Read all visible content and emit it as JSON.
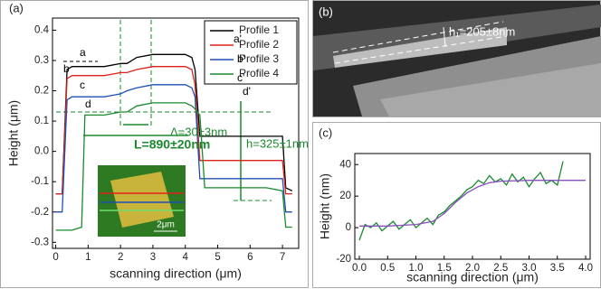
{
  "chart_data": [
    {
      "type": "line",
      "panel_label": "(a)",
      "xlabel": "scanning direction (μm)",
      "ylabel": "Height (μm)",
      "x": [
        0,
        0.2,
        0.35,
        0.5,
        0.8,
        0.9,
        1.0,
        1.5,
        2.0,
        2.2,
        2.5,
        3.0,
        3.5,
        4.0,
        4.2,
        4.3,
        4.45,
        4.6,
        5.0,
        5.5,
        6.0,
        6.5,
        7.0,
        7.1,
        7.3
      ],
      "series": [
        {
          "name": "Profile 1",
          "color": "#000000",
          "values": [
            -0.14,
            -0.14,
            0.27,
            0.28,
            0.28,
            0.28,
            0.28,
            0.28,
            0.29,
            0.29,
            0.31,
            0.32,
            0.32,
            0.32,
            0.31,
            0.27,
            0.05,
            0.05,
            0.05,
            0.05,
            0.05,
            0.05,
            0.05,
            -0.12,
            -0.13
          ]
        },
        {
          "name": "Profile 2",
          "color": "#e0201b",
          "values": [
            -0.14,
            -0.14,
            0.24,
            0.25,
            0.25,
            0.25,
            0.25,
            0.25,
            0.26,
            0.26,
            0.27,
            0.28,
            0.28,
            0.28,
            0.27,
            0.22,
            -0.03,
            -0.03,
            -0.03,
            -0.03,
            -0.03,
            -0.03,
            -0.03,
            -0.14,
            -0.14
          ]
        },
        {
          "name": "Profile 3",
          "color": "#1f4fb4",
          "values": [
            -0.2,
            -0.2,
            0.17,
            0.18,
            0.18,
            0.18,
            0.18,
            0.18,
            0.19,
            0.2,
            0.21,
            0.22,
            0.22,
            0.22,
            0.21,
            0.18,
            -0.09,
            -0.09,
            -0.09,
            -0.09,
            -0.09,
            -0.09,
            -0.09,
            -0.2,
            -0.2
          ]
        },
        {
          "name": "Profile 4",
          "color": "#1a8a2e",
          "values": [
            -0.26,
            -0.26,
            -0.26,
            -0.26,
            -0.25,
            0.12,
            0.12,
            0.12,
            0.13,
            0.13,
            0.15,
            0.16,
            0.16,
            0.16,
            0.15,
            0.14,
            0.12,
            -0.12,
            -0.12,
            -0.12,
            -0.12,
            -0.12,
            -0.13,
            -0.25,
            -0.25
          ]
        }
      ],
      "xlim": [
        -0.1,
        7.5
      ],
      "xticks": [
        0,
        1,
        2,
        3,
        4,
        5,
        6,
        7
      ],
      "ylim": [
        -0.32,
        0.44
      ],
      "yticks": [
        -0.3,
        -0.2,
        -0.1,
        {
          "value": 0,
          "label": "0.0"
        },
        0.1,
        0.2,
        0.3,
        0.4
      ],
      "legend": "upper right",
      "annotations": [
        "a",
        "a'",
        "b",
        "b'",
        "c",
        "c'",
        "d",
        "d'",
        "Δ=30±3nm",
        "L=890±20nm",
        "h=325±1nm"
      ],
      "inset_scale": "2μm"
    },
    {
      "type": "line",
      "panel_label": "(c)",
      "xlabel": "scanning direction (μm)",
      "ylabel": "Height (nm)",
      "series": [
        {
          "color": "#1a8a2e",
          "x": [
            0.0,
            0.1,
            0.2,
            0.3,
            0.4,
            0.5,
            0.6,
            0.7,
            0.8,
            0.9,
            1.0,
            1.1,
            1.2,
            1.3,
            1.4,
            1.5,
            1.6,
            1.7,
            1.8,
            1.9,
            2.0,
            2.1,
            2.2,
            2.3,
            2.4,
            2.5,
            2.6,
            2.7,
            2.8,
            2.9,
            3.0,
            3.1,
            3.2,
            3.3,
            3.4,
            3.5,
            3.6
          ],
          "values": [
            -8,
            2,
            0,
            3,
            -2,
            1,
            4,
            -1,
            2,
            5,
            0,
            3,
            6,
            2,
            8,
            10,
            14,
            17,
            20,
            24,
            26,
            30,
            28,
            33,
            29,
            31,
            27,
            34,
            29,
            32,
            26,
            31,
            35,
            28,
            30,
            27,
            42
          ]
        },
        {
          "color": "#8a4fc0",
          "x": [
            0,
            0.5,
            1.0,
            1.3,
            1.5,
            1.7,
            1.9,
            2.1,
            2.3,
            2.5,
            3.0,
            3.5,
            4.0
          ],
          "values": [
            1,
            1,
            2,
            4,
            9,
            16,
            22,
            26,
            28.5,
            29.5,
            30,
            30,
            30
          ]
        }
      ],
      "xlim": [
        -0.08,
        4.08
      ],
      "xticks": [
        {
          "value": 0,
          "label": "0.0"
        },
        0.5,
        {
          "value": 1,
          "label": "1.0"
        },
        1.5,
        {
          "value": 2,
          "label": "2.0"
        },
        2.5,
        {
          "value": 3,
          "label": "3.0"
        },
        3.5,
        {
          "value": 4,
          "label": "4.0"
        }
      ],
      "ylim": [
        -20,
        47
      ],
      "yticks": [
        -20,
        0,
        20,
        40
      ]
    }
  ],
  "panel_b": {
    "label": "(b)",
    "annotation": "h₁=205±8nm"
  }
}
